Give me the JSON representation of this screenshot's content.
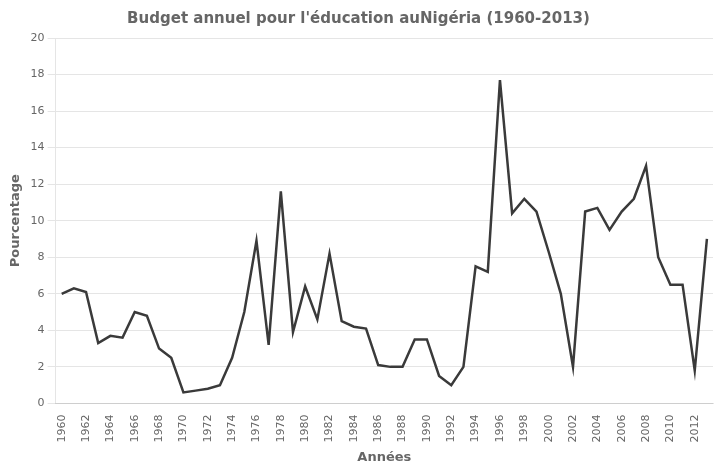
{
  "chart_data": {
    "type": "line",
    "title": "Budget annuel pour l'éducation auNigéria (1960-2013)",
    "xlabel": "Années",
    "ylabel": "Pourcentage",
    "x": [
      1960,
      1961,
      1962,
      1963,
      1964,
      1965,
      1966,
      1967,
      1968,
      1969,
      1970,
      1971,
      1972,
      1973,
      1974,
      1975,
      1976,
      1977,
      1978,
      1979,
      1980,
      1981,
      1982,
      1983,
      1984,
      1985,
      1986,
      1987,
      1988,
      1989,
      1990,
      1991,
      1992,
      1993,
      1994,
      1995,
      1996,
      1997,
      1998,
      1999,
      2000,
      2001,
      2002,
      2003,
      2004,
      2005,
      2006,
      2007,
      2008,
      2009,
      2010,
      2011,
      2012,
      2013
    ],
    "values": [
      6.0,
      6.3,
      6.1,
      3.3,
      3.7,
      3.6,
      5.0,
      4.8,
      3.0,
      2.5,
      0.6,
      0.7,
      0.8,
      1.0,
      2.5,
      5.0,
      8.9,
      3.2,
      11.6,
      3.9,
      6.4,
      4.6,
      8.2,
      4.5,
      4.2,
      4.1,
      2.1,
      2.0,
      2.0,
      3.5,
      3.5,
      1.5,
      1.0,
      2.0,
      7.5,
      7.2,
      17.7,
      10.4,
      11.2,
      10.5,
      8.3,
      6.0,
      2.0,
      10.5,
      10.7,
      9.5,
      10.5,
      11.2,
      13.0,
      8.0,
      6.5,
      6.5,
      1.8,
      9.0
    ],
    "color": "#3a3a3a",
    "xlim": [
      1959.5,
      2013.5
    ],
    "xticks": [
      1960,
      1962,
      1964,
      1966,
      1968,
      1970,
      1972,
      1974,
      1976,
      1978,
      1980,
      1982,
      1984,
      1986,
      1988,
      1990,
      1992,
      1994,
      1996,
      1998,
      2000,
      2002,
      2004,
      2006,
      2008,
      2010,
      2012
    ],
    "ylim": [
      0,
      20
    ],
    "yticks": [
      0,
      2,
      4,
      6,
      8,
      10,
      12,
      14,
      16,
      18,
      20
    ],
    "grid": "y"
  }
}
